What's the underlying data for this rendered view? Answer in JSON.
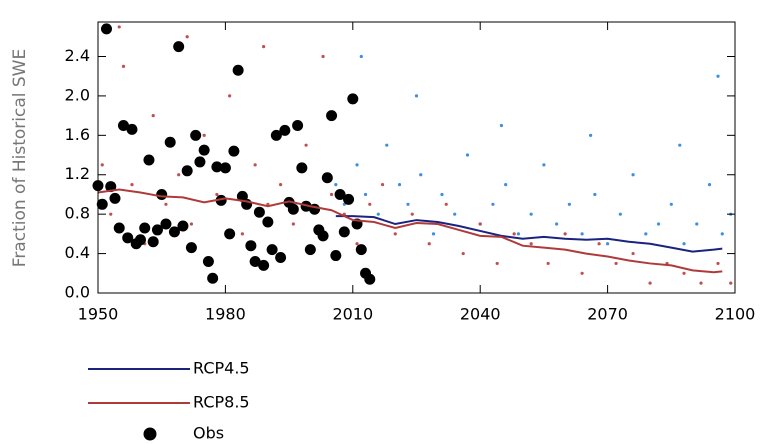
{
  "chart_data": {
    "type": "scatter",
    "ylabel": "Fraction of Historical SWE",
    "xlim": [
      1950,
      2100
    ],
    "ylim": [
      0,
      2.75
    ],
    "xticks": [
      1950,
      1980,
      2010,
      2040,
      2070,
      2100
    ],
    "yticks": [
      {
        "value": 0,
        "label": "0.0"
      },
      0.4,
      0.8,
      1.2,
      1.6,
      {
        "value": 2,
        "label": "2.0"
      },
      2.4
    ],
    "series": [
      {
        "color": "#3d8fe0",
        "type": "markers",
        "size": 1.6,
        "x": [
          2006,
          2008,
          2011,
          2013,
          2016,
          2018,
          2021,
          2023,
          2026,
          2029,
          2031,
          2034,
          2037,
          2040,
          2043,
          2046,
          2049,
          2052,
          2055,
          2058,
          2061,
          2064,
          2067,
          2070,
          2073,
          2076,
          2079,
          2082,
          2085,
          2088,
          2091,
          2094,
          2097,
          2099,
          2012,
          2025,
          2045,
          2066,
          2087,
          2096
        ],
        "y": [
          1.1,
          0.9,
          1.3,
          1.0,
          0.8,
          1.5,
          1.1,
          0.9,
          1.2,
          0.6,
          1.0,
          0.8,
          1.4,
          0.7,
          0.9,
          1.1,
          0.6,
          0.8,
          1.3,
          0.7,
          0.9,
          0.6,
          1.0,
          0.5,
          0.8,
          1.2,
          0.6,
          0.7,
          0.9,
          0.5,
          0.7,
          1.1,
          0.6,
          0.8,
          2.4,
          2.0,
          1.7,
          1.6,
          1.5,
          2.2
        ]
      },
      {
        "color": "#c0504d",
        "type": "markers",
        "size": 1.6,
        "x": [
          1951,
          1953,
          1956,
          1958,
          1961,
          1963,
          1966,
          1969,
          1972,
          1975,
          1978,
          1981,
          1984,
          1987,
          1990,
          1993,
          1996,
          1999,
          2002,
          2005,
          2008,
          2011,
          2014,
          2017,
          2020,
          2024,
          2028,
          2032,
          2036,
          2040,
          2044,
          2048,
          2052,
          2056,
          2060,
          2064,
          2068,
          2072,
          2076,
          2080,
          2084,
          2088,
          2092,
          2096,
          2099,
          1955,
          1971,
          1989,
          2003
        ],
        "y": [
          1.3,
          0.8,
          2.3,
          1.1,
          0.5,
          1.8,
          0.9,
          1.2,
          0.7,
          1.6,
          1.0,
          2.0,
          0.6,
          1.3,
          0.9,
          1.1,
          0.7,
          1.5,
          0.6,
          1.0,
          0.8,
          0.5,
          0.9,
          1.1,
          0.6,
          0.8,
          0.5,
          0.9,
          0.4,
          0.7,
          0.3,
          0.6,
          0.5,
          0.3,
          0.6,
          0.2,
          0.5,
          0.3,
          0.4,
          0.1,
          0.3,
          0.2,
          0.1,
          0.3,
          0.1,
          2.7,
          2.6,
          2.5,
          2.4
        ]
      },
      {
        "name": "Obs",
        "color": "#000000",
        "type": "markers",
        "size": 5.5,
        "x": [
          1950,
          1951,
          1952,
          1953,
          1954,
          1955,
          1956,
          1957,
          1958,
          1959,
          1960,
          1961,
          1962,
          1963,
          1964,
          1965,
          1966,
          1967,
          1968,
          1969,
          1970,
          1971,
          1972,
          1973,
          1974,
          1975,
          1976,
          1977,
          1978,
          1979,
          1980,
          1981,
          1982,
          1983,
          1984,
          1985,
          1986,
          1987,
          1988,
          1989,
          1990,
          1991,
          1992,
          1993,
          1994,
          1995,
          1996,
          1997,
          1998,
          1999,
          2000,
          2001,
          2002,
          2003,
          2004,
          2005,
          2006,
          2007,
          2008,
          2009,
          2010,
          2011,
          2012,
          2013,
          2014
        ],
        "y": [
          1.09,
          0.9,
          2.68,
          1.08,
          0.96,
          0.66,
          1.7,
          0.56,
          1.66,
          0.5,
          0.54,
          0.66,
          1.35,
          0.52,
          0.64,
          1.0,
          0.7,
          1.53,
          0.62,
          2.5,
          0.68,
          1.24,
          0.46,
          1.6,
          1.33,
          1.45,
          0.32,
          0.15,
          1.28,
          0.94,
          1.27,
          0.6,
          1.44,
          2.26,
          0.98,
          0.9,
          0.48,
          0.32,
          0.82,
          0.28,
          0.72,
          0.44,
          1.6,
          0.36,
          1.65,
          0.92,
          0.85,
          1.7,
          1.27,
          0.88,
          0.44,
          0.85,
          0.64,
          0.58,
          1.17,
          1.8,
          0.38,
          1.0,
          0.62,
          0.95,
          1.97,
          0.7,
          0.44,
          0.2,
          0.14
        ]
      },
      {
        "name": "RCP4.5",
        "color": "#1a237e",
        "type": "line",
        "x": [
          2006,
          2010,
          2015,
          2020,
          2025,
          2030,
          2035,
          2040,
          2045,
          2050,
          2055,
          2060,
          2065,
          2070,
          2075,
          2080,
          2085,
          2090,
          2095,
          2097
        ],
        "y": [
          0.78,
          0.78,
          0.77,
          0.7,
          0.74,
          0.72,
          0.68,
          0.63,
          0.58,
          0.55,
          0.57,
          0.55,
          0.54,
          0.55,
          0.52,
          0.5,
          0.46,
          0.42,
          0.44,
          0.45
        ]
      },
      {
        "name": "RCP8.5",
        "color": "#b03a3a",
        "type": "line",
        "x": [
          1950,
          1955,
          1960,
          1965,
          1970,
          1975,
          1980,
          1985,
          1990,
          1995,
          2000,
          2005,
          2010,
          2015,
          2020,
          2025,
          2030,
          2035,
          2040,
          2045,
          2050,
          2055,
          2060,
          2065,
          2070,
          2075,
          2080,
          2085,
          2090,
          2095,
          2097
        ],
        "y": [
          1.02,
          1.05,
          1.02,
          0.98,
          0.97,
          0.92,
          0.96,
          0.93,
          0.88,
          0.93,
          0.88,
          0.84,
          0.74,
          0.72,
          0.66,
          0.71,
          0.7,
          0.64,
          0.58,
          0.57,
          0.48,
          0.46,
          0.44,
          0.4,
          0.37,
          0.33,
          0.3,
          0.28,
          0.23,
          0.21,
          0.22
        ]
      }
    ]
  }
}
